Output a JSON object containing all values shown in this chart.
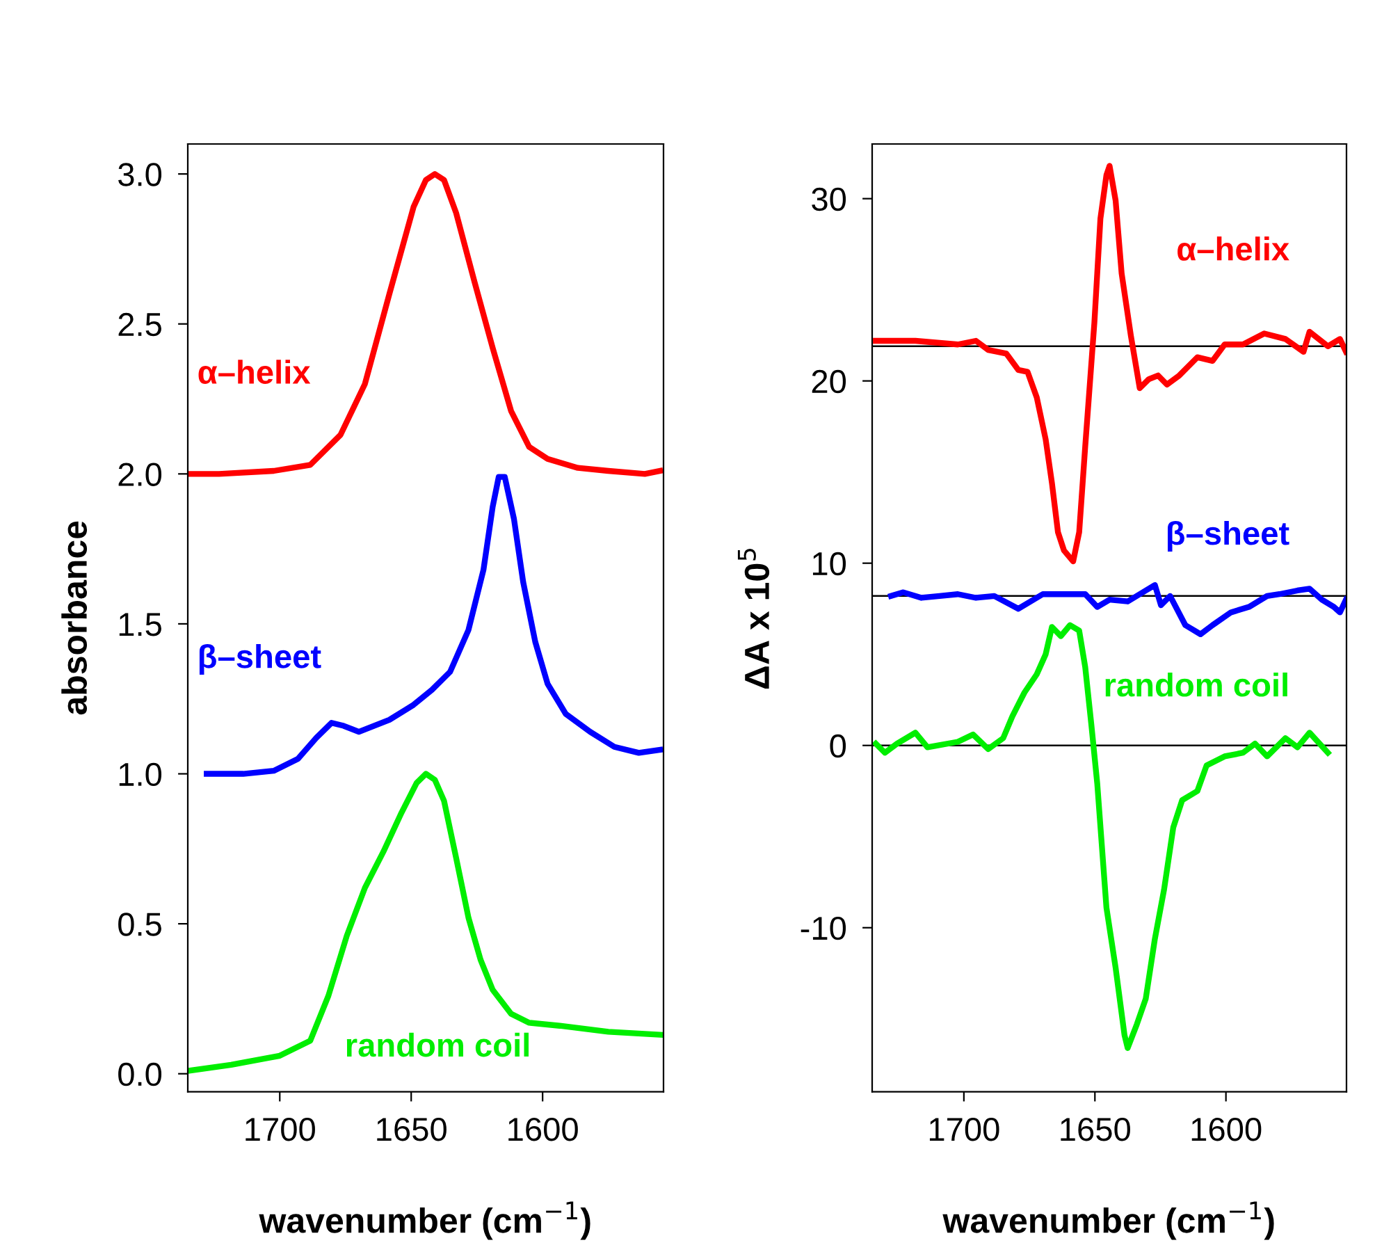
{
  "chart_data": [
    {
      "type": "line",
      "xlabel": "wavenumber (cm$^{−1}$)",
      "ylabel": "absorbance",
      "xlim": [
        1735,
        1554
      ],
      "xticks": [
        1700,
        1650,
        1600
      ],
      "ylim": [
        -0.06,
        3.1
      ],
      "yticks": [
        {
          "value": 0,
          "label": "0.0"
        },
        0.5,
        {
          "value": 1,
          "label": "1.0"
        },
        1.5,
        {
          "value": 2,
          "label": "2.0"
        },
        2.5,
        {
          "value": 3,
          "label": "3.0"
        }
      ],
      "grid": false,
      "legend": false,
      "series": [
        {
          "name": "α–helix",
          "color": "#ff0000",
          "x": [
            1734.7,
            1723.1,
            1702.3,
            1688.4,
            1676.9,
            1667.6,
            1658.3,
            1649.1,
            1644.4,
            1641.0,
            1637.5,
            1632.9,
            1625.9,
            1619.0,
            1612.0,
            1605.1,
            1598.1,
            1586.6,
            1575.0,
            1561.1,
            1555.3
          ],
          "values": [
            2.0,
            2.0,
            2.01,
            2.03,
            2.13,
            2.3,
            2.6,
            2.89,
            2.98,
            3.0,
            2.98,
            2.87,
            2.64,
            2.42,
            2.21,
            2.09,
            2.05,
            2.02,
            2.01,
            2.0,
            2.01
          ]
        },
        {
          "name": "β–sheet",
          "color": "#0000ff",
          "x": [
            1727.8,
            1713.9,
            1702.3,
            1693.1,
            1686.1,
            1680.3,
            1675.7,
            1669.9,
            1658.3,
            1649.1,
            1642.1,
            1635.2,
            1628.2,
            1622.5,
            1619.0,
            1616.7,
            1614.4,
            1610.9,
            1607.4,
            1602.8,
            1598.1,
            1591.2,
            1581.9,
            1572.7,
            1563.4,
            1555.3
          ],
          "values": [
            1.0,
            1.0,
            1.01,
            1.05,
            1.12,
            1.17,
            1.16,
            1.14,
            1.18,
            1.23,
            1.28,
            1.34,
            1.48,
            1.68,
            1.89,
            1.99,
            1.99,
            1.85,
            1.64,
            1.44,
            1.3,
            1.2,
            1.14,
            1.09,
            1.07,
            1.08
          ]
        },
        {
          "name": "random coil",
          "color": "#00ee00",
          "x": [
            1734.7,
            1718.5,
            1700.0,
            1688.4,
            1681.5,
            1674.5,
            1667.6,
            1660.6,
            1653.7,
            1647.9,
            1644.4,
            1641.0,
            1637.5,
            1632.9,
            1628.2,
            1623.6,
            1619.0,
            1612.0,
            1605.1,
            1593.5,
            1575.0,
            1555.3
          ],
          "values": [
            0.01,
            0.03,
            0.06,
            0.11,
            0.26,
            0.46,
            0.62,
            0.74,
            0.87,
            0.97,
            1.0,
            0.98,
            0.91,
            0.72,
            0.52,
            0.38,
            0.28,
            0.2,
            0.17,
            0.16,
            0.14,
            0.13
          ]
        }
      ]
    },
    {
      "type": "line",
      "xlabel": "wavenumber (cm$^{−1}$)",
      "ylabel": "ΔA x 10$^{5}$",
      "xlim": [
        1735,
        1554
      ],
      "xticks": [
        1700,
        1650,
        1600
      ],
      "ylim": [
        -19,
        33
      ],
      "yticks": [
        {
          "value": -10,
          "label": "-10"
        },
        0,
        10,
        20,
        30
      ],
      "grid": false,
      "legend": false,
      "ref_lines": [
        {
          "axis": "y",
          "value": 21.9,
          "color": "#000000"
        },
        {
          "axis": "y",
          "value": 8.2,
          "color": "#000000"
        },
        {
          "axis": "y",
          "value": 0,
          "color": "#000000"
        }
      ],
      "series": [
        {
          "name": "α–helix",
          "color": "#ff0000",
          "x": [
            1733.6,
            1718.5,
            1702.3,
            1695.4,
            1690.7,
            1683.8,
            1679.2,
            1675.7,
            1672.2,
            1668.8,
            1666.4,
            1664.1,
            1661.8,
            1658.3,
            1656.0,
            1653.7,
            1650.2,
            1647.9,
            1645.6,
            1644.4,
            1642.1,
            1639.8,
            1636.3,
            1632.9,
            1629.4,
            1625.9,
            1622.5,
            1617.8,
            1610.9,
            1605.1,
            1600.5,
            1593.5,
            1585.4,
            1577.3,
            1570.4,
            1568.1,
            1561.1,
            1556.5,
            1554.2
          ],
          "values": [
            22.2,
            22.2,
            22.0,
            22.2,
            21.7,
            21.5,
            20.6,
            20.5,
            19.1,
            16.8,
            14.4,
            11.7,
            10.7,
            10.1,
            11.7,
            16.4,
            23.2,
            28.9,
            31.3,
            31.8,
            29.9,
            25.9,
            22.5,
            19.6,
            20.1,
            20.3,
            19.8,
            20.3,
            21.3,
            21.1,
            22.0,
            22.0,
            22.6,
            22.3,
            21.6,
            22.7,
            21.9,
            22.3,
            21.6
          ]
        },
        {
          "name": "β–sheet",
          "color": "#0000ff",
          "x": [
            1727.8,
            1723.1,
            1716.2,
            1709.3,
            1702.3,
            1695.4,
            1688.4,
            1679.2,
            1669.9,
            1660.6,
            1653.7,
            1649.1,
            1644.4,
            1637.5,
            1630.6,
            1627.1,
            1624.8,
            1621.3,
            1615.5,
            1612.0,
            1609.7,
            1605.1,
            1598.1,
            1591.2,
            1584.3,
            1579.6,
            1572.7,
            1568.1,
            1563.4,
            1558.8,
            1556.5,
            1554.2
          ],
          "values": [
            8.2,
            8.4,
            8.1,
            8.2,
            8.3,
            8.1,
            8.2,
            7.5,
            8.3,
            8.3,
            8.3,
            7.6,
            8.0,
            7.9,
            8.5,
            8.8,
            7.7,
            8.2,
            6.6,
            6.3,
            6.1,
            6.6,
            7.3,
            7.6,
            8.2,
            8.3,
            8.5,
            8.6,
            8.0,
            7.6,
            7.3,
            8.0
          ]
        },
        {
          "name": "random coil",
          "color": "#00ee00",
          "x": [
            1733.6,
            1730.1,
            1725.5,
            1718.5,
            1713.9,
            1702.3,
            1696.5,
            1690.7,
            1685.0,
            1681.5,
            1676.9,
            1672.2,
            1668.8,
            1666.4,
            1663.0,
            1659.5,
            1656.0,
            1653.7,
            1651.4,
            1649.1,
            1645.6,
            1642.1,
            1638.7,
            1637.5,
            1634.0,
            1630.6,
            1627.1,
            1623.6,
            1620.1,
            1616.7,
            1610.9,
            1607.4,
            1600.5,
            1593.5,
            1588.9,
            1584.3,
            1577.3,
            1572.7,
            1568.1,
            1561.1
          ],
          "values": [
            0.1,
            -0.4,
            0.1,
            0.7,
            -0.1,
            0.2,
            0.6,
            -0.2,
            0.4,
            1.6,
            2.9,
            3.9,
            5.0,
            6.5,
            6.0,
            6.6,
            6.3,
            4.3,
            1.2,
            -2.1,
            -8.9,
            -12.2,
            -15.9,
            -16.6,
            -15.3,
            -13.9,
            -10.6,
            -7.9,
            -4.5,
            -3.0,
            -2.5,
            -1.1,
            -0.6,
            -0.4,
            0.1,
            -0.6,
            0.4,
            -0.1,
            0.7,
            -0.4
          ]
        }
      ]
    }
  ]
}
